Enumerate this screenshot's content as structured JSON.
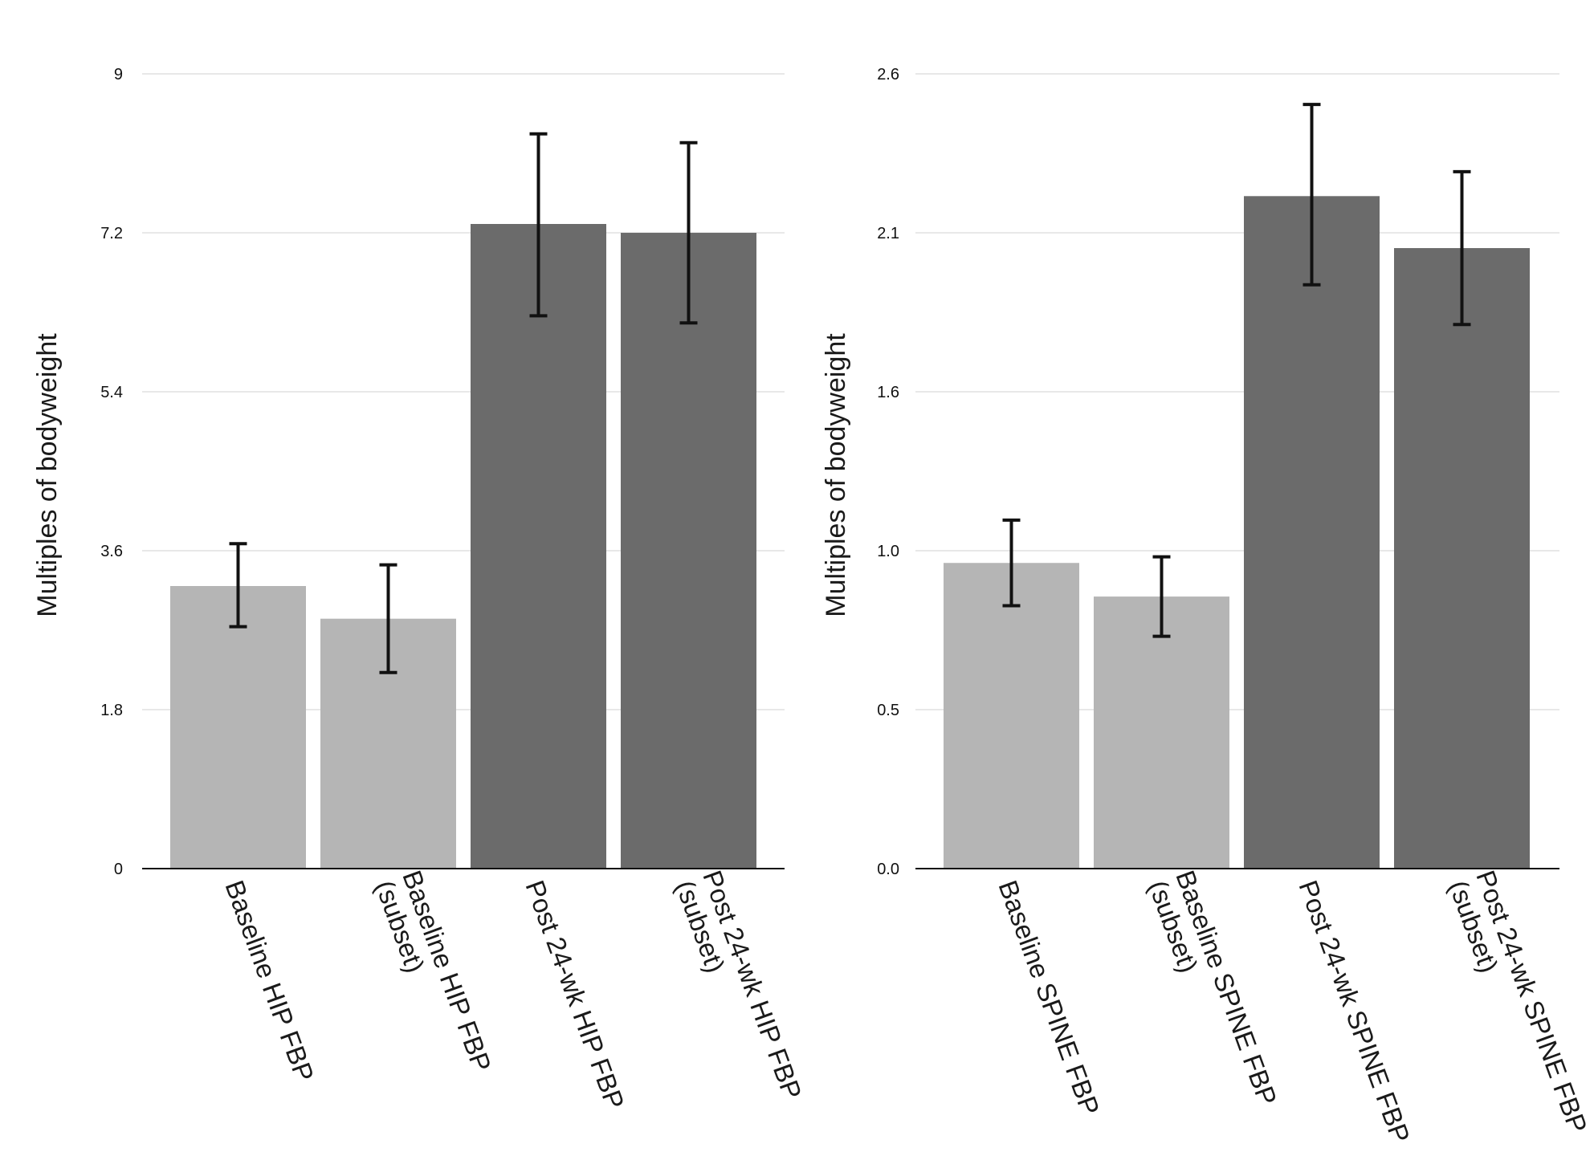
{
  "chart_data": [
    {
      "type": "bar",
      "ylabel": "Multiples of bodyweight",
      "ylim": [
        0,
        9
      ],
      "yticks": [
        "0",
        "1.8",
        "3.6",
        "5.4",
        "7.2",
        "9"
      ],
      "grid": true,
      "categories": [
        [
          "Baseline HIP FBP"
        ],
        [
          "Baseline HIP FBP",
          "(subset)"
        ],
        [
          "Post 24-wk HIP FBP"
        ],
        [
          "Post 24-wk HIP FBP",
          "(subset)"
        ]
      ],
      "values": [
        3.2,
        2.83,
        7.3,
        7.2
      ],
      "error_low": [
        2.74,
        2.22,
        6.26,
        6.18
      ],
      "error_high": [
        3.68,
        3.44,
        8.32,
        8.22
      ],
      "colors": [
        "#b5b5b5",
        "#b5b5b5",
        "#6b6b6b",
        "#6b6b6b"
      ]
    },
    {
      "type": "bar",
      "ylabel": "Multiples of bodyweight",
      "ylim": [
        0.0,
        2.6
      ],
      "yticks": [
        "0.0",
        "0.5",
        "1.0",
        "1.6",
        "2.1",
        "2.6"
      ],
      "grid": true,
      "categories": [
        [
          "Baseline SPINE FBP"
        ],
        [
          "Baseline SPINE FBP",
          "(subset)"
        ],
        [
          "Post 24-wk SPINE FBP"
        ],
        [
          "Post 24-wk SPINE FBP",
          "(subset)"
        ]
      ],
      "values": [
        1.0,
        0.89,
        2.2,
        2.03
      ],
      "error_low": [
        0.86,
        0.76,
        1.91,
        1.78
      ],
      "error_high": [
        1.14,
        1.02,
        2.5,
        2.28
      ],
      "colors": [
        "#b5b5b5",
        "#b5b5b5",
        "#6b6b6b",
        "#6b6b6b"
      ]
    }
  ]
}
